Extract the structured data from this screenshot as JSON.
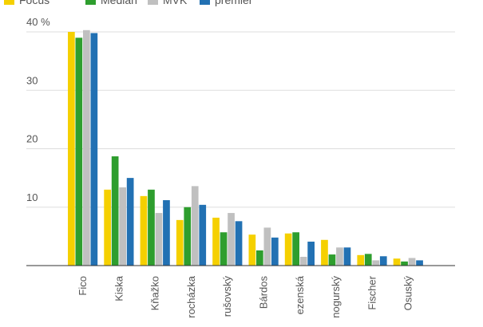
{
  "chart_data": {
    "type": "bar",
    "categories": [
      "Fico",
      "Kiska",
      "Kňažko",
      "rocházka",
      "rušovský",
      "Bárdos",
      "ezenská",
      "nogurský",
      "Fischer",
      "Osuský"
    ],
    "series": [
      {
        "name": "Focus",
        "color": "#f5d000",
        "values": [
          40,
          13.0,
          11.9,
          7.8,
          8.2,
          5.3,
          5.5,
          4.4,
          1.8,
          1.2
        ]
      },
      {
        "name": "Median",
        "color": "#2e9e2e",
        "values": [
          39,
          18.7,
          13.0,
          10.0,
          5.7,
          2.6,
          5.7,
          1.9,
          2.0,
          0.7
        ]
      },
      {
        "name": "MVK",
        "color": "#c0c0c0",
        "values": [
          40.3,
          13.4,
          9.0,
          13.6,
          9.0,
          6.5,
          1.5,
          3.1,
          0.9,
          1.3
        ]
      },
      {
        "name": "premier",
        "color": "#2271b3",
        "values": [
          39.8,
          15.0,
          11.2,
          10.4,
          7.6,
          4.8,
          4.1,
          3.1,
          1.6,
          0.9
        ]
      }
    ],
    "yticks": [
      "",
      "10",
      "20",
      "30",
      "40 %"
    ],
    "ytick_values": [
      0,
      10,
      20,
      30,
      40
    ],
    "ylim": [
      0,
      40
    ],
    "grid": true,
    "legend": "top-left"
  }
}
